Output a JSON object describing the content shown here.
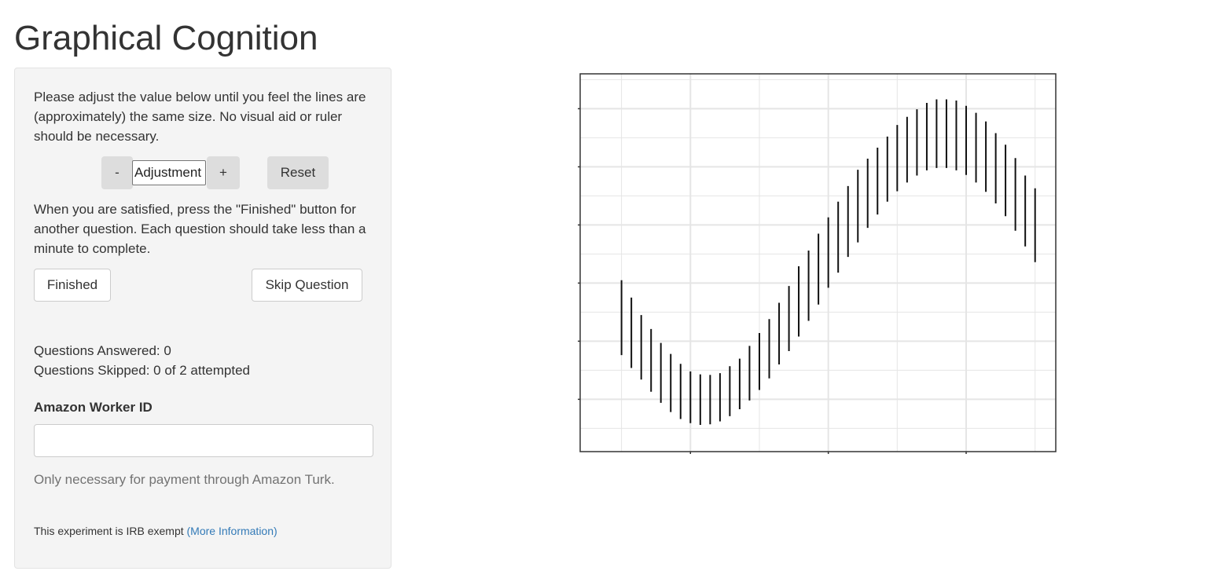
{
  "page": {
    "title": "Graphical Cognition"
  },
  "panel": {
    "instructions": "Please adjust the value below until you feel the lines are (approximately) the same size. No visual aid or ruler should be necessary.",
    "adjust": {
      "minus_label": "-",
      "input_value": "Adjustment",
      "plus_label": "+",
      "reset_label": "Reset"
    },
    "instructions2": "When you are satisfied, press the \"Finished\" button for another question. Each question should take less than a minute to complete.",
    "finished_label": "Finished",
    "skip_label": "Skip Question",
    "answered_text": "Questions Answered: 0",
    "skipped_text": "Questions Skipped: 0 of 2 attempted",
    "worker_label": "Amazon Worker ID",
    "worker_value": "",
    "help_text": "Only necessary for payment through Amazon Turk.",
    "irb_text": "This experiment is IRB exempt",
    "irb_link": "(More Information)"
  },
  "colors": {
    "panel_bg": "#f4f4f4",
    "button_gray": "#dddddd",
    "link": "#337ab7",
    "help_text": "#737373",
    "grid": "#e5e5e5"
  },
  "chart_data": {
    "type": "line",
    "description_of_marks": "vertical segments",
    "x": [
      -3.0,
      -2.857,
      -2.714,
      -2.571,
      -2.429,
      -2.286,
      -2.143,
      -2.0,
      -1.857,
      -1.714,
      -1.571,
      -1.429,
      -1.286,
      -1.143,
      -1.0,
      -0.857,
      -0.714,
      -0.571,
      -0.429,
      -0.286,
      -0.143,
      0.0,
      0.143,
      0.286,
      0.429,
      0.571,
      0.714,
      0.857,
      1.0,
      1.143,
      1.286,
      1.429,
      1.571,
      1.714,
      1.857,
      2.0,
      2.143,
      2.286,
      2.429,
      2.571,
      2.714,
      2.857,
      3.0
    ],
    "y_bottom": [
      -1.24,
      -1.46,
      -1.66,
      -1.87,
      -2.06,
      -2.22,
      -2.34,
      -2.41,
      -2.44,
      -2.43,
      -2.38,
      -2.29,
      -2.17,
      -2.02,
      -1.84,
      -1.64,
      -1.4,
      -1.17,
      -0.92,
      -0.65,
      -0.37,
      -0.08,
      0.18,
      0.45,
      0.7,
      0.95,
      1.18,
      1.4,
      1.58,
      1.73,
      1.85,
      1.94,
      1.98,
      1.98,
      1.94,
      1.86,
      1.73,
      1.57,
      1.37,
      1.15,
      0.9,
      0.63,
      0.36
    ],
    "y_top": [
      0.05,
      -0.25,
      -0.55,
      -0.79,
      -1.03,
      -1.22,
      -1.39,
      -1.52,
      -1.57,
      -1.58,
      -1.55,
      -1.43,
      -1.3,
      -1.08,
      -0.86,
      -0.62,
      -0.34,
      -0.05,
      0.29,
      0.56,
      0.85,
      1.13,
      1.4,
      1.67,
      1.95,
      2.14,
      2.33,
      2.52,
      2.72,
      2.86,
      2.99,
      3.1,
      3.16,
      3.16,
      3.14,
      3.05,
      2.93,
      2.78,
      2.58,
      2.38,
      2.15,
      1.85,
      1.63
    ],
    "xlim": [
      -3.6,
      3.3
    ],
    "ylim": [
      -2.9,
      3.6
    ],
    "x_ticks": [
      -2.0,
      0.0,
      2.0
    ],
    "y_ticks": [
      -2.0,
      -1.0,
      0.0,
      1.0,
      2.0,
      3.0
    ],
    "title": "",
    "xlabel": "",
    "ylabel": "",
    "grid": true
  }
}
